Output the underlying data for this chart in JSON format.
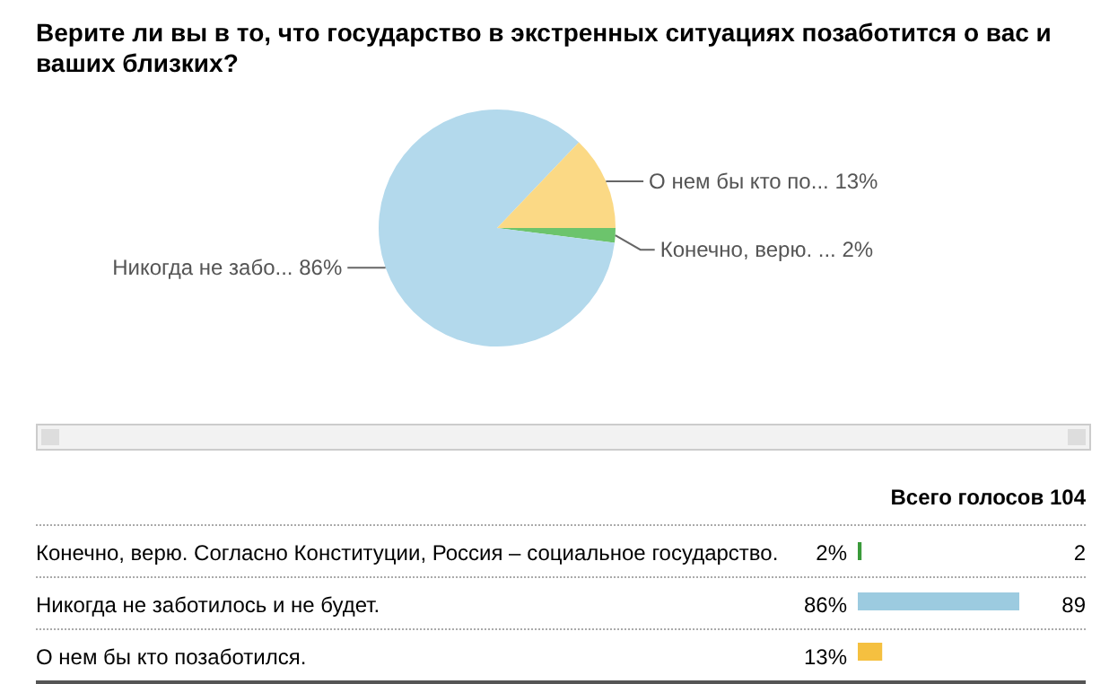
{
  "chart_data": [
    {
      "type": "pie",
      "title": "Верите ли вы в то, что государство в экстренных ситуациях позаботится о вас и ваших близких?",
      "categories": [
        "Конечно, верю. ...",
        "Никогда не забо...",
        "О нем бы кто по..."
      ],
      "values": [
        2,
        86,
        13
      ],
      "value_labels": [
        "2%",
        "86%",
        "13%"
      ],
      "colors": [
        "#6cc46c",
        "#b3d9ec",
        "#fbd985"
      ],
      "legend": false
    },
    {
      "type": "bar",
      "orientation": "horizontal",
      "title": "Всего голосов  104",
      "categories": [
        "Конечно, верю. Согласно Конституции, Россия – социальное государство.",
        "Никогда не заботилось и не будет.",
        "О нем бы кто позаботился."
      ],
      "values": [
        2,
        86,
        13
      ],
      "value_labels": [
        "2%",
        "86%",
        "13%"
      ],
      "colors": [
        "#3a9a3a",
        "#9ccbe0",
        "#f5c040"
      ],
      "annotations": [
        "2",
        "89"
      ],
      "legend": false
    }
  ]
}
